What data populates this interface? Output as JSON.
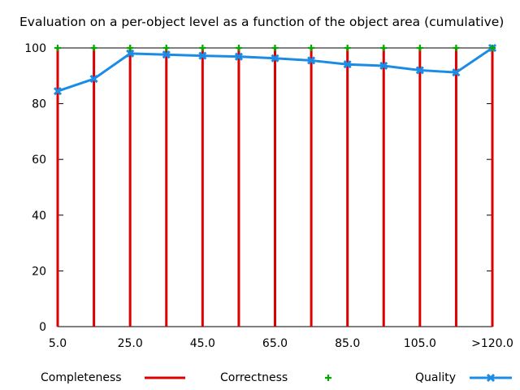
{
  "chart_data": {
    "type": "bar",
    "title": "Evaluation on a per-object level as a function of the object area (cumulative)",
    "xlabel": "",
    "ylabel": "",
    "categories": [
      "5.0",
      "15.0",
      "25.0",
      "35.0",
      "45.0",
      "55.0",
      "65.0",
      "75.0",
      "85.0",
      "95.0",
      "105.0",
      "115.0",
      ">120.0"
    ],
    "x_tick_labels": [
      "5.0",
      "25.0",
      "45.0",
      "65.0",
      "85.0",
      "105.0",
      ">120.0"
    ],
    "y_ticks": [
      0,
      20,
      40,
      60,
      80,
      100
    ],
    "ylim": [
      0,
      100
    ],
    "grid": false,
    "legend_position": "bottom",
    "series": [
      {
        "name": "Completeness",
        "style": "impulses",
        "color": "#dd0000",
        "values": [
          100,
          100,
          100,
          100,
          100,
          100,
          100,
          100,
          100,
          100,
          100,
          100,
          100
        ]
      },
      {
        "name": "Correctness",
        "style": "points",
        "color": "#00aa00",
        "values": [
          100,
          100,
          100,
          100,
          100,
          100,
          100,
          100,
          100,
          100,
          100,
          100,
          100
        ]
      },
      {
        "name": "Quality",
        "style": "linespoints",
        "color": "#1a8ce6",
        "values": [
          84.5,
          88.9,
          98.0,
          97.6,
          97.2,
          96.9,
          96.3,
          95.5,
          94.1,
          93.6,
          92.0,
          91.2,
          100
        ]
      }
    ]
  }
}
